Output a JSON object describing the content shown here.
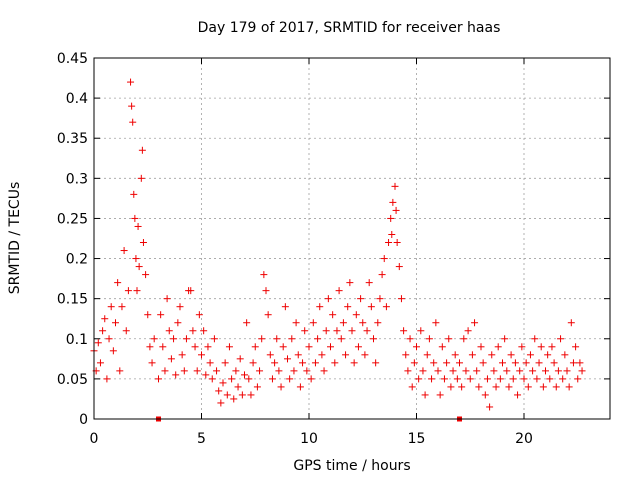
{
  "chart_data": {
    "type": "scatter",
    "title": "Day 179 of 2017, SRMTID for receiver haas",
    "xlabel": "GPS time / hours",
    "ylabel": "SRMTID / TECUs",
    "xlim": [
      0,
      24.0
    ],
    "ylim": [
      0,
      0.45
    ],
    "x_ticks": [
      0,
      5,
      10,
      15,
      20
    ],
    "x_tick_labels": [
      "0",
      "5",
      "10",
      "15",
      "20"
    ],
    "y_ticks": [
      0,
      0.05,
      0.1,
      0.15,
      0.2,
      0.25,
      0.3,
      0.35,
      0.4,
      0.45
    ],
    "y_tick_labels": [
      "0",
      "0.05",
      "0.1",
      "0.15",
      "0.2",
      "0.25",
      "0.3",
      "0.35",
      "0.4",
      "0.45"
    ],
    "grid": true,
    "marker": "plus",
    "color": "#ee0000",
    "series": [
      {
        "name": "SRMTID",
        "points": [
          [
            0.0,
            0.085
          ],
          [
            0.1,
            0.06
          ],
          [
            0.2,
            0.095
          ],
          [
            0.3,
            0.07
          ],
          [
            0.4,
            0.11
          ],
          [
            0.5,
            0.125
          ],
          [
            0.6,
            0.05
          ],
          [
            0.7,
            0.1
          ],
          [
            0.8,
            0.14
          ],
          [
            0.9,
            0.085
          ],
          [
            1.0,
            0.12
          ],
          [
            1.1,
            0.17
          ],
          [
            1.2,
            0.06
          ],
          [
            1.3,
            0.14
          ],
          [
            1.4,
            0.21
          ],
          [
            1.5,
            0.11
          ],
          [
            1.6,
            0.16
          ],
          [
            1.7,
            0.42
          ],
          [
            1.75,
            0.39
          ],
          [
            1.8,
            0.37
          ],
          [
            1.85,
            0.28
          ],
          [
            1.9,
            0.25
          ],
          [
            1.95,
            0.2
          ],
          [
            2.0,
            0.16
          ],
          [
            2.05,
            0.24
          ],
          [
            2.1,
            0.19
          ],
          [
            2.2,
            0.3
          ],
          [
            2.25,
            0.335
          ],
          [
            2.3,
            0.22
          ],
          [
            2.4,
            0.18
          ],
          [
            2.5,
            0.13
          ],
          [
            2.6,
            0.09
          ],
          [
            2.7,
            0.07
          ],
          [
            2.8,
            0.1
          ],
          [
            3.0,
            0.05
          ],
          [
            3.1,
            0.13
          ],
          [
            3.2,
            0.09
          ],
          [
            3.3,
            0.06
          ],
          [
            3.4,
            0.15
          ],
          [
            3.5,
            0.11
          ],
          [
            3.6,
            0.075
          ],
          [
            3.7,
            0.1
          ],
          [
            3.8,
            0.055
          ],
          [
            3.9,
            0.12
          ],
          [
            4.0,
            0.14
          ],
          [
            4.1,
            0.08
          ],
          [
            4.2,
            0.06
          ],
          [
            4.3,
            0.1
          ],
          [
            4.4,
            0.16
          ],
          [
            4.5,
            0.16
          ],
          [
            4.6,
            0.11
          ],
          [
            4.7,
            0.09
          ],
          [
            4.8,
            0.06
          ],
          [
            4.9,
            0.13
          ],
          [
            5.0,
            0.08
          ],
          [
            5.1,
            0.11
          ],
          [
            5.2,
            0.055
          ],
          [
            5.3,
            0.09
          ],
          [
            5.4,
            0.07
          ],
          [
            5.5,
            0.05
          ],
          [
            5.6,
            0.1
          ],
          [
            5.7,
            0.06
          ],
          [
            5.8,
            0.035
          ],
          [
            5.9,
            0.02
          ],
          [
            6.0,
            0.045
          ],
          [
            6.1,
            0.07
          ],
          [
            6.2,
            0.03
          ],
          [
            6.3,
            0.09
          ],
          [
            6.4,
            0.05
          ],
          [
            6.5,
            0.025
          ],
          [
            6.6,
            0.06
          ],
          [
            6.7,
            0.04
          ],
          [
            6.8,
            0.075
          ],
          [
            6.9,
            0.03
          ],
          [
            7.0,
            0.055
          ],
          [
            7.1,
            0.12
          ],
          [
            7.2,
            0.05
          ],
          [
            7.3,
            0.03
          ],
          [
            7.4,
            0.07
          ],
          [
            7.5,
            0.09
          ],
          [
            7.6,
            0.04
          ],
          [
            7.7,
            0.06
          ],
          [
            7.8,
            0.1
          ],
          [
            7.9,
            0.18
          ],
          [
            8.0,
            0.16
          ],
          [
            8.1,
            0.13
          ],
          [
            8.2,
            0.08
          ],
          [
            8.3,
            0.05
          ],
          [
            8.4,
            0.07
          ],
          [
            8.5,
            0.1
          ],
          [
            8.6,
            0.06
          ],
          [
            8.7,
            0.04
          ],
          [
            8.8,
            0.09
          ],
          [
            8.9,
            0.14
          ],
          [
            9.0,
            0.075
          ],
          [
            9.1,
            0.05
          ],
          [
            9.2,
            0.1
          ],
          [
            9.3,
            0.06
          ],
          [
            9.4,
            0.12
          ],
          [
            9.5,
            0.08
          ],
          [
            9.6,
            0.04
          ],
          [
            9.7,
            0.07
          ],
          [
            9.8,
            0.11
          ],
          [
            9.9,
            0.06
          ],
          [
            10.0,
            0.09
          ],
          [
            10.1,
            0.05
          ],
          [
            10.2,
            0.12
          ],
          [
            10.3,
            0.07
          ],
          [
            10.4,
            0.1
          ],
          [
            10.5,
            0.14
          ],
          [
            10.6,
            0.08
          ],
          [
            10.7,
            0.06
          ],
          [
            10.8,
            0.11
          ],
          [
            10.9,
            0.15
          ],
          [
            11.0,
            0.09
          ],
          [
            11.1,
            0.13
          ],
          [
            11.2,
            0.07
          ],
          [
            11.3,
            0.11
          ],
          [
            11.4,
            0.16
          ],
          [
            11.5,
            0.1
          ],
          [
            11.6,
            0.12
          ],
          [
            11.7,
            0.08
          ],
          [
            11.8,
            0.14
          ],
          [
            11.9,
            0.17
          ],
          [
            12.0,
            0.11
          ],
          [
            12.1,
            0.07
          ],
          [
            12.2,
            0.13
          ],
          [
            12.3,
            0.09
          ],
          [
            12.4,
            0.15
          ],
          [
            12.5,
            0.12
          ],
          [
            12.6,
            0.08
          ],
          [
            12.7,
            0.11
          ],
          [
            12.8,
            0.17
          ],
          [
            12.9,
            0.14
          ],
          [
            13.0,
            0.1
          ],
          [
            13.1,
            0.07
          ],
          [
            13.2,
            0.12
          ],
          [
            13.3,
            0.15
          ],
          [
            13.4,
            0.18
          ],
          [
            13.5,
            0.2
          ],
          [
            13.6,
            0.14
          ],
          [
            13.7,
            0.22
          ],
          [
            13.8,
            0.25
          ],
          [
            13.85,
            0.23
          ],
          [
            13.9,
            0.27
          ],
          [
            14.0,
            0.29
          ],
          [
            14.05,
            0.26
          ],
          [
            14.1,
            0.22
          ],
          [
            14.2,
            0.19
          ],
          [
            14.3,
            0.15
          ],
          [
            14.4,
            0.11
          ],
          [
            14.5,
            0.08
          ],
          [
            14.6,
            0.06
          ],
          [
            14.7,
            0.1
          ],
          [
            14.8,
            0.04
          ],
          [
            14.9,
            0.07
          ],
          [
            15.0,
            0.09
          ],
          [
            15.1,
            0.05
          ],
          [
            15.2,
            0.11
          ],
          [
            15.3,
            0.06
          ],
          [
            15.4,
            0.03
          ],
          [
            15.5,
            0.08
          ],
          [
            15.6,
            0.1
          ],
          [
            15.7,
            0.05
          ],
          [
            15.8,
            0.07
          ],
          [
            15.9,
            0.12
          ],
          [
            16.0,
            0.06
          ],
          [
            16.1,
            0.03
          ],
          [
            16.2,
            0.09
          ],
          [
            16.3,
            0.05
          ],
          [
            16.4,
            0.07
          ],
          [
            16.5,
            0.1
          ],
          [
            16.6,
            0.04
          ],
          [
            16.7,
            0.06
          ],
          [
            16.8,
            0.08
          ],
          [
            16.9,
            0.05
          ],
          [
            17.0,
            0.07
          ],
          [
            17.1,
            0.04
          ],
          [
            17.2,
            0.1
          ],
          [
            17.3,
            0.06
          ],
          [
            17.4,
            0.11
          ],
          [
            17.5,
            0.05
          ],
          [
            17.6,
            0.08
          ],
          [
            17.7,
            0.12
          ],
          [
            17.8,
            0.06
          ],
          [
            17.9,
            0.04
          ],
          [
            18.0,
            0.09
          ],
          [
            18.1,
            0.07
          ],
          [
            18.2,
            0.03
          ],
          [
            18.3,
            0.05
          ],
          [
            18.4,
            0.015
          ],
          [
            18.5,
            0.08
          ],
          [
            18.6,
            0.06
          ],
          [
            18.7,
            0.04
          ],
          [
            18.8,
            0.09
          ],
          [
            18.9,
            0.05
          ],
          [
            19.0,
            0.07
          ],
          [
            19.1,
            0.1
          ],
          [
            19.2,
            0.06
          ],
          [
            19.3,
            0.04
          ],
          [
            19.4,
            0.08
          ],
          [
            19.5,
            0.05
          ],
          [
            19.6,
            0.07
          ],
          [
            19.7,
            0.03
          ],
          [
            19.8,
            0.06
          ],
          [
            19.9,
            0.09
          ],
          [
            20.0,
            0.05
          ],
          [
            20.1,
            0.07
          ],
          [
            20.2,
            0.04
          ],
          [
            20.3,
            0.08
          ],
          [
            20.4,
            0.06
          ],
          [
            20.5,
            0.1
          ],
          [
            20.6,
            0.05
          ],
          [
            20.7,
            0.07
          ],
          [
            20.8,
            0.09
          ],
          [
            20.9,
            0.04
          ],
          [
            21.0,
            0.06
          ],
          [
            21.1,
            0.08
          ],
          [
            21.2,
            0.05
          ],
          [
            21.3,
            0.09
          ],
          [
            21.4,
            0.07
          ],
          [
            21.5,
            0.04
          ],
          [
            21.6,
            0.06
          ],
          [
            21.7,
            0.1
          ],
          [
            21.8,
            0.05
          ],
          [
            21.9,
            0.08
          ],
          [
            22.0,
            0.06
          ],
          [
            22.1,
            0.04
          ],
          [
            22.2,
            0.12
          ],
          [
            22.3,
            0.07
          ],
          [
            22.4,
            0.09
          ],
          [
            22.5,
            0.05
          ],
          [
            22.6,
            0.07
          ],
          [
            22.7,
            0.06
          ]
        ]
      }
    ],
    "markers_on_x_axis": [
      3.0,
      17.0
    ]
  }
}
